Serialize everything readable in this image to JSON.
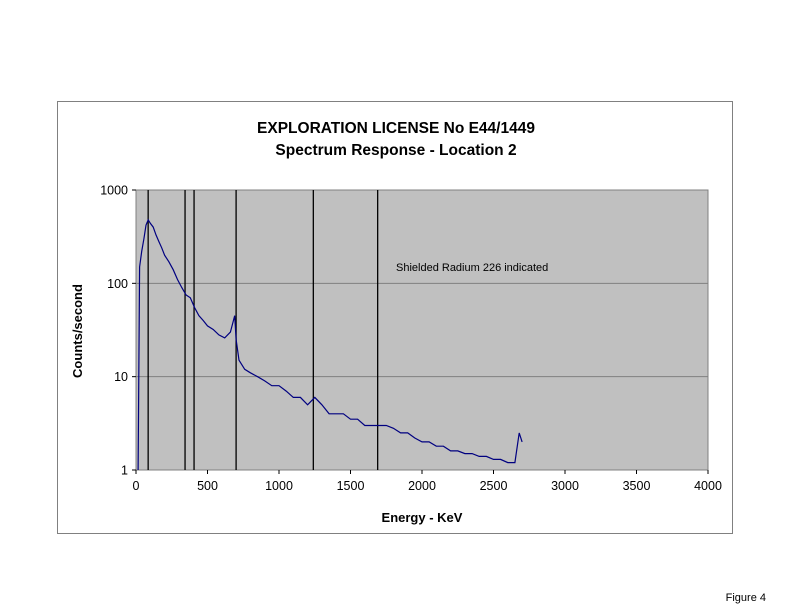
{
  "figure_label": "Figure 4",
  "colors": {
    "plot_background": "#c0c0c0",
    "series_line": "#000080",
    "marker_lines": "#000000",
    "gridlines": "#808080"
  },
  "chart_data": {
    "type": "line",
    "title": "EXPLORATION LICENSE No E44/1449",
    "subtitle": "Spectrum Response - Location 2",
    "xlabel": "Energy - KeV",
    "ylabel": "Counts/second",
    "xlim": [
      0,
      4000
    ],
    "ylim": [
      1,
      1000
    ],
    "yscale": "log",
    "xticks": [
      0,
      500,
      1000,
      1500,
      2000,
      2500,
      3000,
      3500,
      4000
    ],
    "yticks": [
      1,
      10,
      100,
      1000
    ],
    "grid": "horizontal",
    "annotation": "Shielded Radium 226 indicated",
    "marker_lines_kev": [
      85,
      343,
      406,
      700,
      1240,
      1690
    ],
    "series": [
      {
        "x": [
          15,
          25,
          40,
          55,
          70,
          85,
          100,
          120,
          140,
          160,
          180,
          200,
          230,
          260,
          290,
          320,
          350,
          380,
          410,
          440,
          470,
          500,
          540,
          580,
          620,
          660,
          690,
          700,
          720,
          760,
          800,
          850,
          900,
          950,
          1000,
          1050,
          1100,
          1150,
          1200,
          1250,
          1300,
          1350,
          1400,
          1450,
          1500,
          1550,
          1600,
          1650,
          1700,
          1750,
          1800,
          1850,
          1900,
          1950,
          2000,
          2050,
          2100,
          2150,
          2200,
          2250,
          2300,
          2350,
          2400,
          2450,
          2500,
          2550,
          2600,
          2650,
          2680,
          2700
        ],
        "y": [
          1,
          150,
          220,
          300,
          420,
          480,
          440,
          400,
          330,
          280,
          240,
          200,
          170,
          140,
          110,
          90,
          75,
          70,
          55,
          45,
          40,
          35,
          32,
          28,
          26,
          30,
          45,
          25,
          15,
          12,
          11,
          10,
          9,
          8,
          8,
          7,
          6,
          6,
          5,
          6,
          5,
          4,
          4,
          4,
          3.5,
          3.5,
          3,
          3,
          3,
          3,
          2.8,
          2.5,
          2.5,
          2.2,
          2,
          2,
          1.8,
          1.8,
          1.6,
          1.6,
          1.5,
          1.5,
          1.4,
          1.4,
          1.3,
          1.3,
          1.2,
          1.2,
          2.5,
          2
        ]
      }
    ]
  }
}
